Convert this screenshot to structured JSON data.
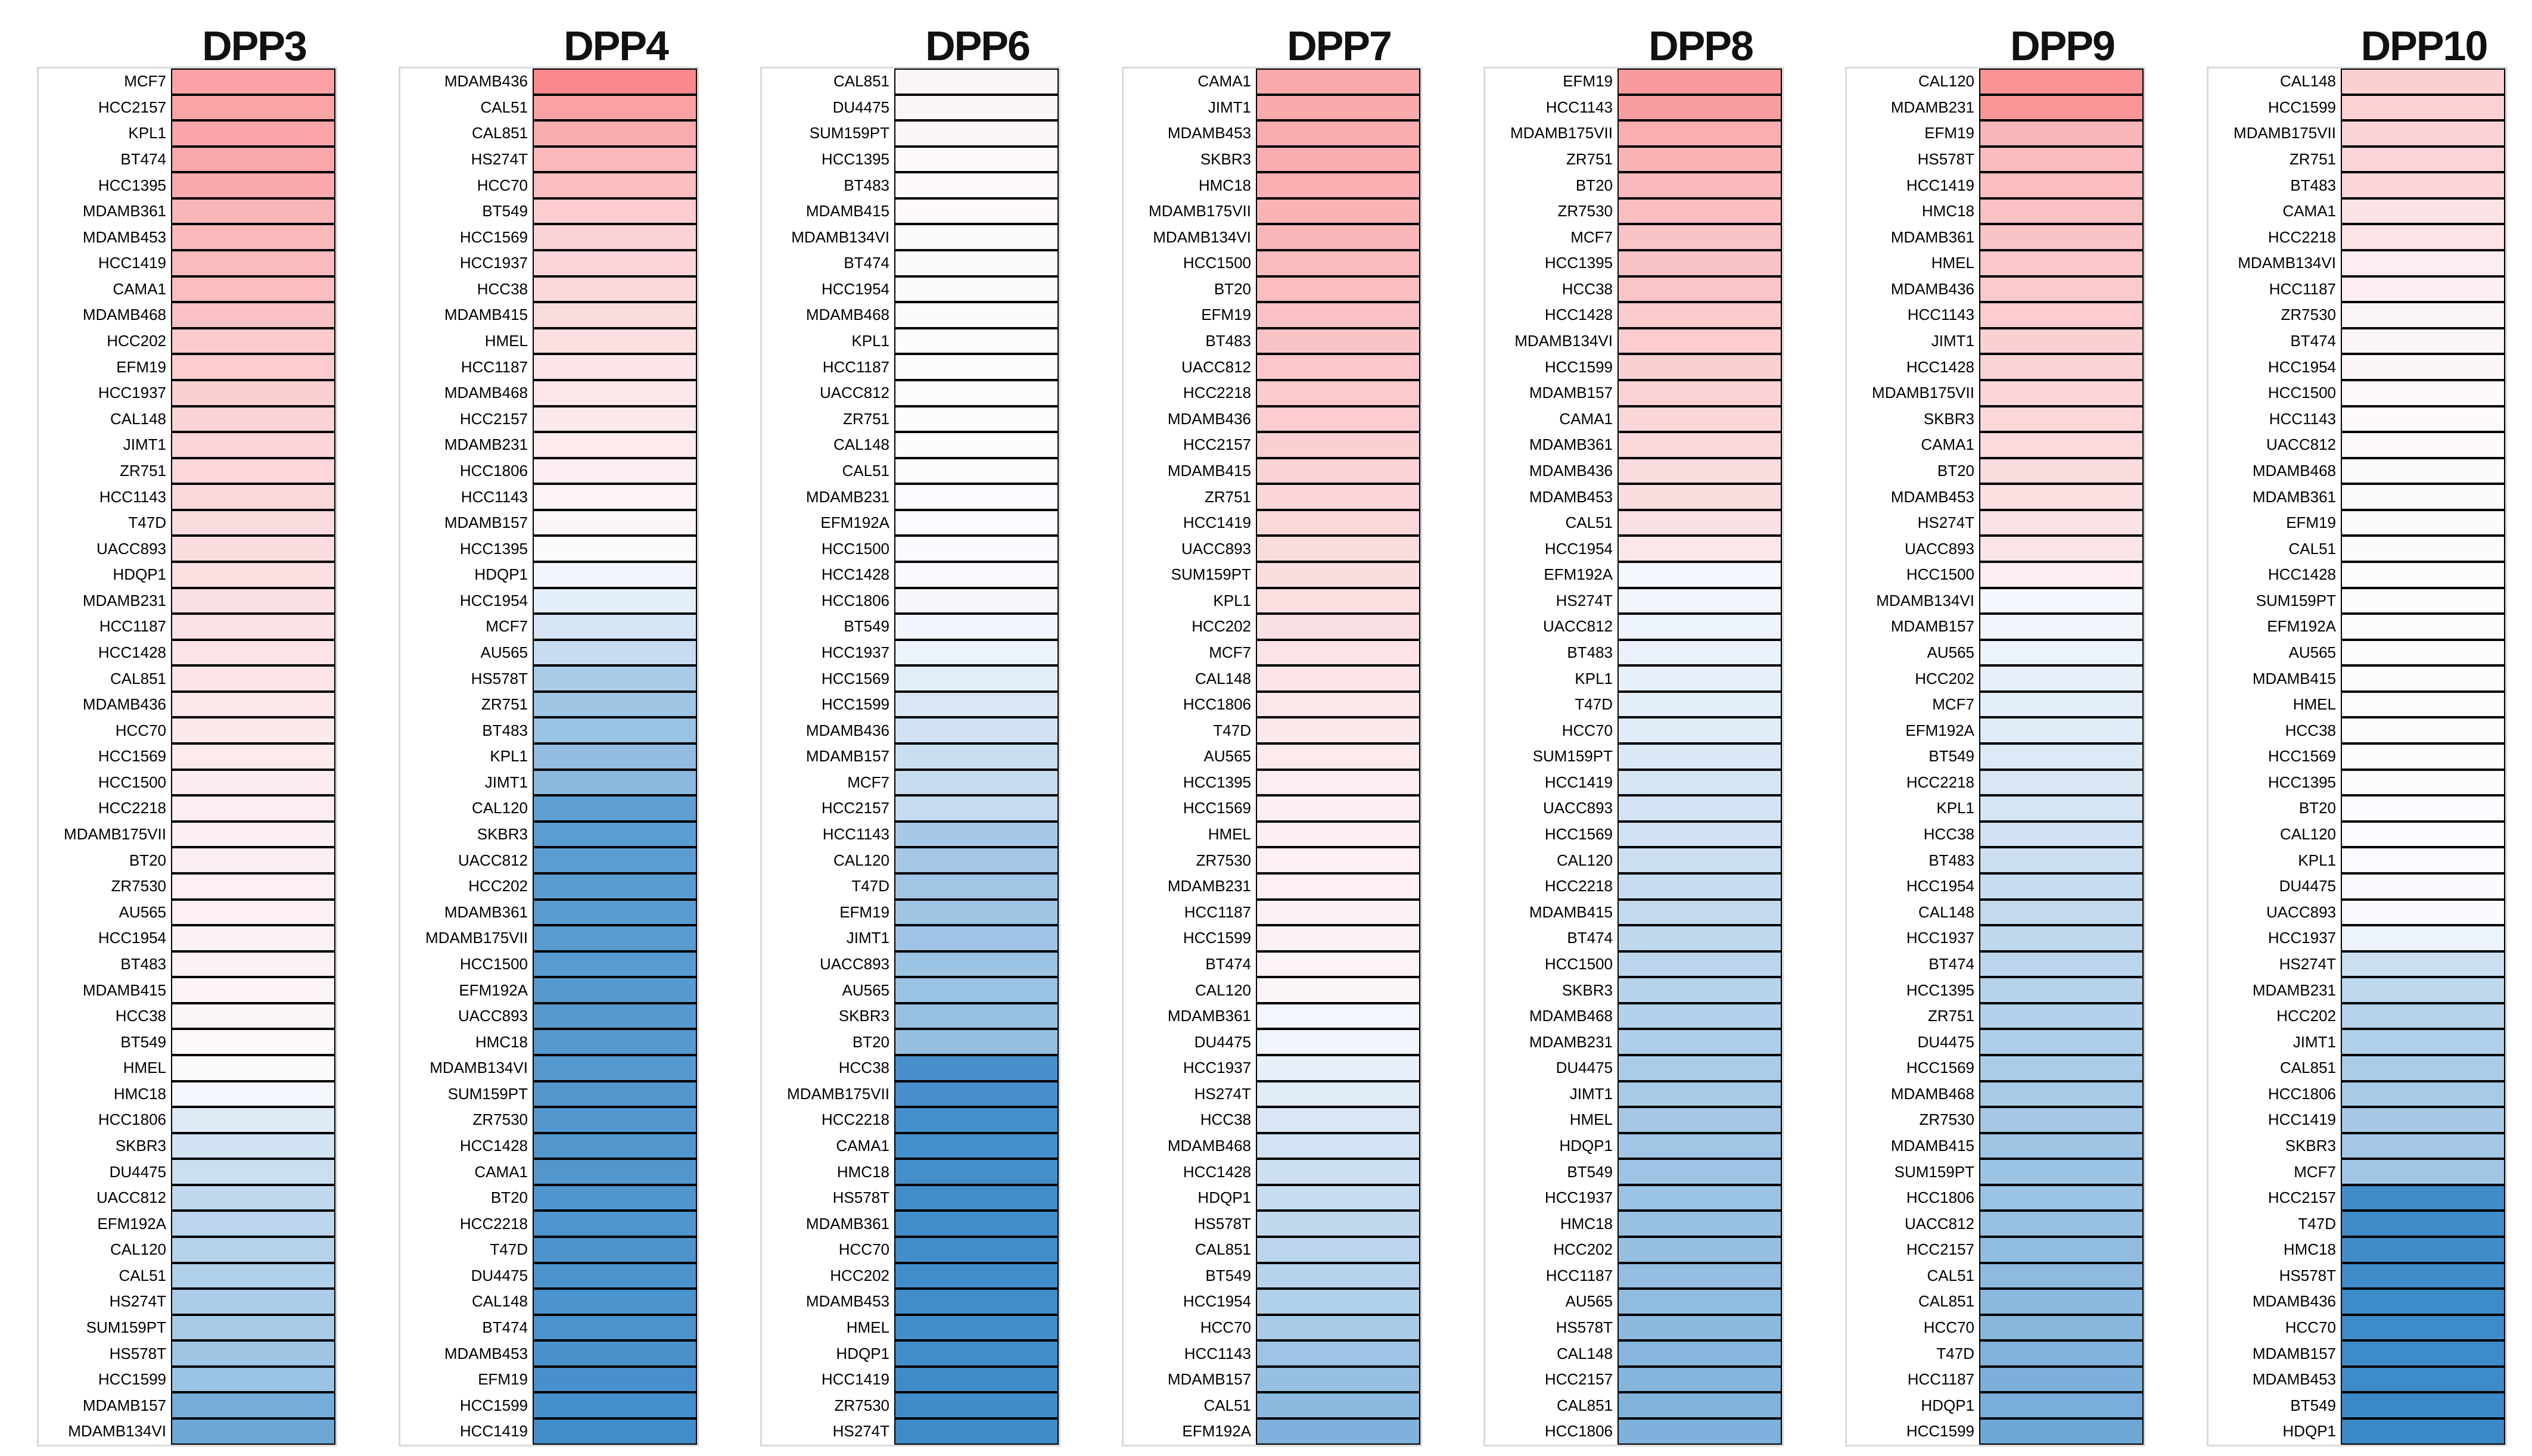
{
  "chart_data": {
    "type": "heatmap",
    "description": "Ranked single-column heatmaps of relative expression per DPP gene across breast cancer cell lines; red = high, white = mid, blue = low. Values are normalized estimates (-1..1) read from cell colors.",
    "colors": {
      "high": "#F8696B",
      "mid": "#FCFCFF",
      "low": "#3787C6",
      "cell_border": "#000000",
      "box_border": "#D9D9D9"
    },
    "value_scale": {
      "min": -1,
      "mid": 0,
      "max": 1
    },
    "legend": "none",
    "grid": "off",
    "columns": [
      {
        "title": "DPP3",
        "labels": [
          "MCF7",
          "HCC2157",
          "KPL1",
          "BT474",
          "HCC1395",
          "MDAMB361",
          "MDAMB453",
          "HCC1419",
          "CAMA1",
          "MDAMB468",
          "HCC202",
          "EFM19",
          "HCC1937",
          "CAL148",
          "JIMT1",
          "ZR751",
          "HCC1143",
          "T47D",
          "UACC893",
          "HDQP1",
          "MDAMB231",
          "HCC1187",
          "HCC1428",
          "CAL851",
          "MDAMB436",
          "HCC70",
          "HCC1569",
          "HCC1500",
          "HCC2218",
          "MDAMB175VII",
          "BT20",
          "ZR7530",
          "AU565",
          "HCC1954",
          "BT483",
          "MDAMB415",
          "HCC38",
          "BT549",
          "HMEL",
          "HMC18",
          "HCC1806",
          "SKBR3",
          "DU4475",
          "UACC812",
          "EFM192A",
          "CAL120",
          "CAL51",
          "HS274T",
          "SUM159PT",
          "HS578T",
          "HCC1599",
          "MDAMB157",
          "MDAMB134VI"
        ],
        "values": [
          0.61,
          0.6,
          0.59,
          0.58,
          0.56,
          0.48,
          0.46,
          0.44,
          0.42,
          0.4,
          0.33,
          0.32,
          0.3,
          0.28,
          0.26,
          0.25,
          0.24,
          0.22,
          0.21,
          0.2,
          0.19,
          0.18,
          0.17,
          0.16,
          0.15,
          0.13,
          0.12,
          0.11,
          0.1,
          0.09,
          0.09,
          0.08,
          0.08,
          0.07,
          0.07,
          0.06,
          0.05,
          0.03,
          0.02,
          -0.04,
          -0.15,
          -0.22,
          -0.25,
          -0.3,
          -0.33,
          -0.36,
          -0.38,
          -0.41,
          -0.43,
          -0.47,
          -0.49,
          -0.68,
          -0.73
        ]
      },
      {
        "title": "DPP4",
        "labels": [
          "MDAMB436",
          "CAL51",
          "CAL851",
          "HS274T",
          "HCC70",
          "BT549",
          "HCC1569",
          "HCC1937",
          "HCC38",
          "MDAMB415",
          "HMEL",
          "HCC1187",
          "MDAMB468",
          "HCC2157",
          "MDAMB231",
          "HCC1806",
          "HCC1143",
          "MDAMB157",
          "HCC1395",
          "HDQP1",
          "HCC1954",
          "MCF7",
          "AU565",
          "HS578T",
          "ZR751",
          "BT483",
          "KPL1",
          "JIMT1",
          "CAL120",
          "SKBR3",
          "UACC812",
          "HCC202",
          "MDAMB361",
          "MDAMB175VII",
          "HCC1500",
          "EFM192A",
          "UACC893",
          "HMC18",
          "MDAMB134VI",
          "SUM159PT",
          "ZR7530",
          "HCC1428",
          "CAMA1",
          "BT20",
          "HCC2218",
          "T47D",
          "DU4475",
          "CAL148",
          "BT474",
          "MDAMB453",
          "EFM19",
          "HCC1599",
          "HCC1419"
        ],
        "values": [
          0.78,
          0.62,
          0.55,
          0.46,
          0.42,
          0.32,
          0.28,
          0.26,
          0.24,
          0.22,
          0.2,
          0.16,
          0.14,
          0.13,
          0.12,
          0.09,
          0.06,
          0.04,
          0.02,
          -0.05,
          -0.12,
          -0.2,
          -0.27,
          -0.42,
          -0.47,
          -0.5,
          -0.54,
          -0.57,
          -0.8,
          -0.81,
          -0.81,
          -0.82,
          -0.82,
          -0.83,
          -0.83,
          -0.84,
          -0.84,
          -0.85,
          -0.85,
          -0.86,
          -0.86,
          -0.87,
          -0.87,
          -0.88,
          -0.88,
          -0.89,
          -0.89,
          -0.9,
          -0.9,
          -0.91,
          -0.92,
          -0.93,
          -0.94
        ]
      },
      {
        "title": "DPP6",
        "labels": [
          "CAL851",
          "DU4475",
          "SUM159PT",
          "HCC1395",
          "BT483",
          "MDAMB415",
          "MDAMB134VI",
          "BT474",
          "HCC1954",
          "MDAMB468",
          "KPL1",
          "HCC1187",
          "UACC812",
          "ZR751",
          "CAL148",
          "CAL51",
          "MDAMB231",
          "EFM192A",
          "HCC1500",
          "HCC1428",
          "HCC1806",
          "BT549",
          "HCC1937",
          "HCC1569",
          "HCC1599",
          "MDAMB436",
          "MDAMB157",
          "MCF7",
          "HCC2157",
          "HCC1143",
          "CAL120",
          "T47D",
          "EFM19",
          "JIMT1",
          "UACC893",
          "AU565",
          "SKBR3",
          "BT20",
          "HCC38",
          "MDAMB175VII",
          "HCC2218",
          "CAMA1",
          "HMC18",
          "HS578T",
          "MDAMB361",
          "HCC70",
          "HCC202",
          "MDAMB453",
          "HMEL",
          "HDQP1",
          "HCC1419",
          "ZR7530",
          "HS274T"
        ],
        "values": [
          0.05,
          0.04,
          0.04,
          0.03,
          0.03,
          0.03,
          0.02,
          0.02,
          0.02,
          0.02,
          0.01,
          0.01,
          0.01,
          0.01,
          0.0,
          0.0,
          -0.01,
          -0.01,
          -0.02,
          -0.02,
          -0.03,
          -0.05,
          -0.08,
          -0.13,
          -0.18,
          -0.23,
          -0.26,
          -0.27,
          -0.28,
          -0.44,
          -0.45,
          -0.46,
          -0.47,
          -0.48,
          -0.49,
          -0.5,
          -0.51,
          -0.52,
          -0.92,
          -0.92,
          -0.93,
          -0.93,
          -0.93,
          -0.94,
          -0.94,
          -0.94,
          -0.95,
          -0.95,
          -0.95,
          -0.95,
          -0.96,
          -0.96,
          -0.96
        ]
      },
      {
        "title": "DPP7",
        "labels": [
          "CAMA1",
          "JIMT1",
          "MDAMB453",
          "SKBR3",
          "HMC18",
          "MDAMB175VII",
          "MDAMB134VI",
          "HCC1500",
          "BT20",
          "EFM19",
          "BT483",
          "UACC812",
          "HCC2218",
          "MDAMB436",
          "HCC2157",
          "MDAMB415",
          "ZR751",
          "HCC1419",
          "UACC893",
          "SUM159PT",
          "KPL1",
          "HCC202",
          "MCF7",
          "CAL148",
          "HCC1806",
          "T47D",
          "AU565",
          "HCC1395",
          "HCC1569",
          "HMEL",
          "ZR7530",
          "MDAMB231",
          "HCC1187",
          "HCC1599",
          "BT474",
          "CAL120",
          "MDAMB361",
          "DU4475",
          "HCC1937",
          "HS274T",
          "HCC38",
          "MDAMB468",
          "HCC1428",
          "HDQP1",
          "HS578T",
          "CAL851",
          "BT549",
          "HCC1954",
          "HCC70",
          "HCC1143",
          "MDAMB157",
          "CAL51",
          "EFM192A"
        ],
        "values": [
          0.57,
          0.56,
          0.55,
          0.54,
          0.52,
          0.5,
          0.48,
          0.44,
          0.42,
          0.4,
          0.38,
          0.36,
          0.34,
          0.32,
          0.3,
          0.28,
          0.26,
          0.24,
          0.22,
          0.21,
          0.2,
          0.19,
          0.17,
          0.16,
          0.14,
          0.13,
          0.12,
          0.1,
          0.09,
          0.09,
          0.08,
          0.08,
          0.07,
          0.07,
          0.06,
          0.05,
          -0.04,
          -0.06,
          -0.1,
          -0.14,
          -0.18,
          -0.21,
          -0.24,
          -0.27,
          -0.3,
          -0.33,
          -0.35,
          -0.38,
          -0.42,
          -0.48,
          -0.52,
          -0.57,
          -0.64
        ]
      },
      {
        "title": "DPP8",
        "labels": [
          "EFM19",
          "HCC1143",
          "MDAMB175VII",
          "ZR751",
          "BT20",
          "ZR7530",
          "MCF7",
          "HCC1395",
          "HCC38",
          "HCC1428",
          "MDAMB134VI",
          "HCC1599",
          "MDAMB157",
          "CAMA1",
          "MDAMB361",
          "MDAMB436",
          "MDAMB453",
          "CAL51",
          "HCC1954",
          "EFM192A",
          "HS274T",
          "UACC812",
          "BT483",
          "KPL1",
          "T47D",
          "HCC70",
          "SUM159PT",
          "HCC1419",
          "UACC893",
          "HCC1569",
          "CAL120",
          "HCC2218",
          "MDAMB415",
          "BT474",
          "HCC1500",
          "SKBR3",
          "MDAMB468",
          "MDAMB231",
          "DU4475",
          "JIMT1",
          "HMEL",
          "HDQP1",
          "BT549",
          "HCC1937",
          "HMC18",
          "HCC202",
          "HCC1187",
          "AU565",
          "HS578T",
          "CAL148",
          "HCC2157",
          "CAL851",
          "HCC1806"
        ],
        "values": [
          0.66,
          0.64,
          0.53,
          0.5,
          0.45,
          0.42,
          0.39,
          0.38,
          0.37,
          0.33,
          0.32,
          0.3,
          0.28,
          0.26,
          0.24,
          0.22,
          0.21,
          0.19,
          0.14,
          -0.04,
          -0.06,
          -0.07,
          -0.09,
          -0.1,
          -0.12,
          -0.14,
          -0.17,
          -0.19,
          -0.21,
          -0.23,
          -0.25,
          -0.27,
          -0.29,
          -0.31,
          -0.33,
          -0.35,
          -0.37,
          -0.39,
          -0.41,
          -0.43,
          -0.45,
          -0.46,
          -0.48,
          -0.5,
          -0.51,
          -0.52,
          -0.53,
          -0.55,
          -0.57,
          -0.6,
          -0.61,
          -0.63,
          -0.64
        ]
      },
      {
        "title": "DPP9",
        "labels": [
          "CAL120",
          "MDAMB231",
          "EFM19",
          "HS578T",
          "HCC1419",
          "HMC18",
          "MDAMB361",
          "HMEL",
          "MDAMB436",
          "HCC1143",
          "JIMT1",
          "HCC1428",
          "MDAMB175VII",
          "SKBR3",
          "CAMA1",
          "BT20",
          "MDAMB453",
          "HS274T",
          "UACC893",
          "HCC1500",
          "MDAMB134VI",
          "MDAMB157",
          "AU565",
          "HCC202",
          "MCF7",
          "EFM192A",
          "BT549",
          "HCC2218",
          "KPL1",
          "HCC38",
          "BT483",
          "HCC1954",
          "CAL148",
          "HCC1937",
          "BT474",
          "HCC1395",
          "ZR751",
          "DU4475",
          "HCC1569",
          "MDAMB468",
          "ZR7530",
          "MDAMB415",
          "SUM159PT",
          "HCC1806",
          "UACC812",
          "HCC2157",
          "CAL51",
          "CAL851",
          "HCC70",
          "T47D",
          "HCC1187",
          "HDQP1",
          "HCC1599"
        ],
        "values": [
          0.72,
          0.7,
          0.48,
          0.44,
          0.42,
          0.4,
          0.38,
          0.36,
          0.34,
          0.32,
          0.3,
          0.28,
          0.26,
          0.25,
          0.23,
          0.22,
          0.2,
          0.18,
          0.16,
          0.1,
          -0.04,
          -0.06,
          -0.08,
          -0.1,
          -0.12,
          -0.14,
          -0.16,
          -0.18,
          -0.2,
          -0.23,
          -0.25,
          -0.27,
          -0.29,
          -0.31,
          -0.33,
          -0.35,
          -0.37,
          -0.39,
          -0.41,
          -0.43,
          -0.45,
          -0.47,
          -0.49,
          -0.5,
          -0.51,
          -0.55,
          -0.56,
          -0.58,
          -0.59,
          -0.63,
          -0.65,
          -0.67,
          -0.72
        ]
      },
      {
        "title": "DPP10",
        "labels": [
          "CAL148",
          "HCC1599",
          "MDAMB175VII",
          "ZR751",
          "BT483",
          "CAMA1",
          "HCC2218",
          "MDAMB134VI",
          "HCC1187",
          "ZR7530",
          "BT474",
          "HCC1954",
          "HCC1500",
          "HCC1143",
          "UACC812",
          "MDAMB468",
          "MDAMB361",
          "EFM19",
          "CAL51",
          "HCC1428",
          "SUM159PT",
          "EFM192A",
          "AU565",
          "MDAMB415",
          "HMEL",
          "HCC38",
          "HCC1569",
          "HCC1395",
          "BT20",
          "CAL120",
          "KPL1",
          "DU4475",
          "UACC893",
          "HCC1937",
          "HS274T",
          "MDAMB231",
          "HCC202",
          "JIMT1",
          "CAL851",
          "HCC1806",
          "HCC1419",
          "SKBR3",
          "MCF7",
          "HCC2157",
          "T47D",
          "HMC18",
          "HS578T",
          "MDAMB436",
          "HCC70",
          "MDAMB157",
          "MDAMB453",
          "BT549",
          "HDQP1"
        ],
        "values": [
          0.3,
          0.29,
          0.28,
          0.27,
          0.26,
          0.18,
          0.17,
          0.1,
          0.09,
          0.05,
          0.04,
          0.04,
          0.03,
          0.03,
          0.03,
          0.02,
          0.02,
          0.02,
          0.02,
          0.01,
          0.01,
          0.01,
          0.01,
          0.01,
          0.0,
          0.0,
          0.0,
          0.0,
          -0.01,
          -0.01,
          -0.01,
          -0.02,
          -0.02,
          -0.08,
          -0.25,
          -0.32,
          -0.35,
          -0.38,
          -0.41,
          -0.43,
          -0.44,
          -0.45,
          -0.46,
          -0.96,
          -0.96,
          -0.96,
          -0.96,
          -0.97,
          -0.97,
          -0.97,
          -0.97,
          -0.98,
          -0.98
        ]
      }
    ]
  }
}
